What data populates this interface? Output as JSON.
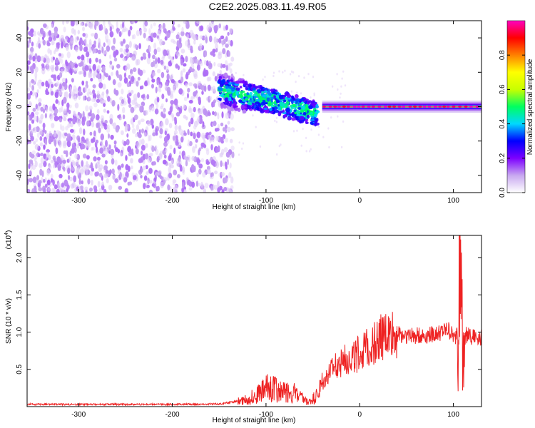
{
  "title": "C2E2.2025.083.11.49.R05",
  "chart_data": [
    {
      "type": "heatmap",
      "xlabel": "Height of straight line (km)",
      "ylabel": "Frequency (Hz)",
      "xlim": [
        -355,
        130
      ],
      "ylim": [
        -50,
        50
      ],
      "x_ticks": [
        -300,
        -200,
        -100,
        0,
        100
      ],
      "y_ticks": [
        -40,
        -20,
        0,
        20,
        40
      ],
      "colorbar": {
        "label": "Normalized spectral amplitude",
        "range": [
          0,
          1
        ],
        "ticks": [
          0.0,
          0.2,
          0.4,
          0.6,
          0.8
        ],
        "colors": [
          "#ffffff",
          "#c8a8f0",
          "#7d00ff",
          "#0000ff",
          "#00d8ff",
          "#00ff60",
          "#c8ff00",
          "#ffff00",
          "#ff8000",
          "#ff0000",
          "#ff00c0"
        ]
      },
      "regions": [
        {
          "name": "noise",
          "x_range": [
            -355,
            -135
          ],
          "freq_range": [
            -50,
            50
          ],
          "amplitude": 0.1
        },
        {
          "name": "drift",
          "points": [
            [
              -150,
              10
            ],
            [
              -120,
              6
            ],
            [
              -100,
              4
            ],
            [
              -80,
              1
            ],
            [
              -60,
              -2
            ],
            [
              -45,
              -4
            ]
          ],
          "amplitude": 0.4
        },
        {
          "name": "carrier",
          "x_range": [
            -40,
            130
          ],
          "freq": 0,
          "amplitude": 1.0
        }
      ]
    },
    {
      "type": "line",
      "xlabel": "Height of straight line (km)",
      "ylabel": "SNR (10 * v/v)",
      "y_scale_label": "(x10",
      "y_scale_exp": "4",
      "xlim": [
        -355,
        130
      ],
      "ylim": [
        0,
        23000
      ],
      "x_ticks": [
        -300,
        -200,
        -100,
        0,
        100
      ],
      "y_ticks": [
        5000,
        10000,
        15000,
        20000
      ],
      "y_tick_labels": [
        "0.5",
        "1.0",
        "1.5",
        "2.0"
      ],
      "series": [
        {
          "color": "#ee2222",
          "x": [
            -355,
            -300,
            -200,
            -150,
            -120,
            -105,
            -95,
            -85,
            -70,
            -55,
            -45,
            -35,
            -25,
            -15,
            -5,
            5,
            15,
            25,
            35,
            50,
            65,
            80,
            95,
            102,
            106,
            108,
            110,
            113,
            120,
            130
          ],
          "y": [
            300,
            300,
            300,
            350,
            900,
            2000,
            2800,
            2000,
            1800,
            500,
            1500,
            4000,
            5500,
            6500,
            6800,
            7500,
            8500,
            9500,
            9800,
            9600,
            9500,
            9700,
            10300,
            9000,
            13000,
            22500,
            8000,
            9600,
            9400,
            9300
          ]
        }
      ]
    }
  ]
}
